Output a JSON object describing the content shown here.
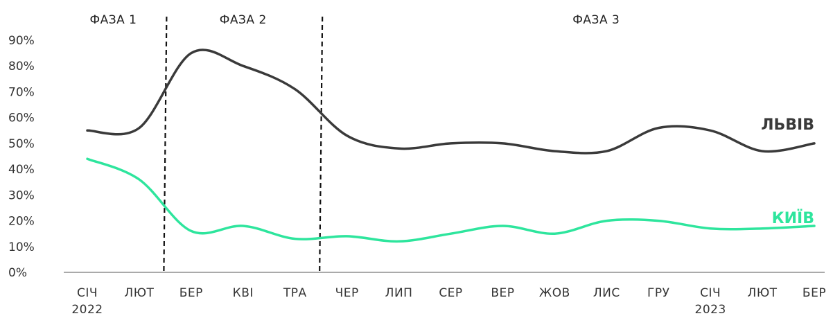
{
  "chart_data": {
    "type": "line",
    "categories": [
      "СІЧ",
      "ЛЮТ",
      "БЕР",
      "КВІ",
      "ТРА",
      "ЧЕР",
      "ЛИП",
      "СЕР",
      "ВЕР",
      "ЖОВ",
      "ЛИС",
      "ГРУ",
      "СІЧ",
      "ЛЮТ",
      "БЕР"
    ],
    "year_labels": [
      {
        "category_index": 0,
        "text": "2022"
      },
      {
        "category_index": 12,
        "text": "2023"
      }
    ],
    "y_ticks": [
      "0%",
      "10%",
      "20%",
      "30%",
      "40%",
      "50%",
      "60%",
      "70%",
      "80%",
      "90%"
    ],
    "ylim": [
      0,
      90
    ],
    "phases": [
      {
        "label": "ФАЗА 1",
        "from": 0,
        "to": 1.5
      },
      {
        "label": "ФАЗА 2",
        "from": 1.5,
        "to": 4.5
      },
      {
        "label": "ФАЗА 3",
        "from": 4.5,
        "to": 14
      }
    ],
    "phase_boundaries": [
      1.5,
      4.5
    ],
    "series": [
      {
        "name": "ЛЬВІВ",
        "color": "#3a3a3a",
        "values": [
          55,
          56,
          85,
          80,
          71,
          53,
          48,
          50,
          50,
          47,
          47,
          56,
          55,
          47,
          50
        ]
      },
      {
        "name": "КИЇВ",
        "color": "#2ee59d",
        "values": [
          44,
          36,
          16,
          18,
          13,
          14,
          12,
          15,
          18,
          15,
          20,
          20,
          17,
          17,
          18
        ]
      }
    ],
    "grid": false,
    "legend": "inline-right"
  }
}
